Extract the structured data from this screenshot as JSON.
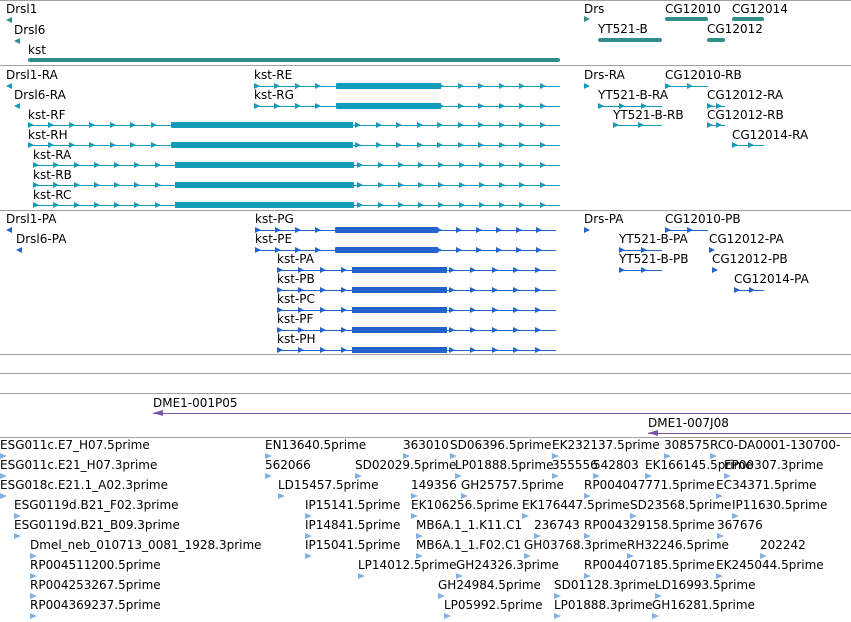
{
  "colors": {
    "gene": "#318c8c",
    "transcript_ra": "#129bb8",
    "protein_pa": "#2563cc",
    "clone": "#7b55a3",
    "est": "#7fb2e0",
    "separator": "#a0a0a0"
  },
  "tracks": {
    "genes": [
      {
        "label": "Drsl1",
        "strand": "-"
      },
      {
        "label": "Drsl6",
        "strand": "-"
      },
      {
        "label": "kst",
        "strand": "+"
      },
      {
        "label": "Drs",
        "strand": "+"
      },
      {
        "label": "YT521-B",
        "strand": "+"
      },
      {
        "label": "CG12010",
        "strand": "+"
      },
      {
        "label": "CG12012",
        "strand": "+"
      },
      {
        "label": "CG12014",
        "strand": "+"
      }
    ],
    "transcripts": [
      {
        "label": "Drsl1-RA"
      },
      {
        "label": "Drsl6-RA"
      },
      {
        "label": "kst-RF"
      },
      {
        "label": "kst-RH"
      },
      {
        "label": "kst-RA"
      },
      {
        "label": "kst-RB"
      },
      {
        "label": "kst-RC"
      },
      {
        "label": "kst-RE"
      },
      {
        "label": "kst-RG"
      },
      {
        "label": "Drs-RA"
      },
      {
        "label": "YT521-B-RA"
      },
      {
        "label": "YT521-B-RB"
      },
      {
        "label": "CG12010-RB"
      },
      {
        "label": "CG12012-RA"
      },
      {
        "label": "CG12012-RB"
      },
      {
        "label": "CG12014-RA"
      }
    ],
    "proteins": [
      {
        "label": "Drsl1-PA"
      },
      {
        "label": "Drsl6-PA"
      },
      {
        "label": "kst-PG"
      },
      {
        "label": "kst-PE"
      },
      {
        "label": "kst-PA"
      },
      {
        "label": "kst-PB"
      },
      {
        "label": "kst-PC"
      },
      {
        "label": "kst-PF"
      },
      {
        "label": "kst-PH"
      },
      {
        "label": "Drs-PA"
      },
      {
        "label": "YT521-B-PA"
      },
      {
        "label": "YT521-B-PB"
      },
      {
        "label": "CG12010-PB"
      },
      {
        "label": "CG12012-PA"
      },
      {
        "label": "CG12012-PB"
      },
      {
        "label": "CG12014-PA"
      }
    ],
    "clones": [
      {
        "label": "DME1-001P05"
      },
      {
        "label": "DME1-007J08"
      }
    ],
    "ests": [
      "ESG011c.E7_H07.5prime",
      "ESG011c.E21_H07.3prime",
      "ESG018c.E21.1_A02.3prime",
      "ESG0119d.B21_F02.3prime",
      "ESG0119d.B21_B09.3prime",
      "Dmel_neb_010713_0081_1928.3prime",
      "RP004511200.5prime",
      "RP004253267.5prime",
      "RP004369237.5prime",
      "EN13640.5prime",
      "562066",
      "LD15457.5prime",
      "IP15141.5prime",
      "IP14841.5prime",
      "IP15041.5prime",
      "363010",
      "SD06396.5prime",
      "SD02029.5prime",
      "LP01888.5prime",
      "149356",
      "GH25757.5prime",
      "EK106256.5prime",
      "MB6A.1_1.K11.C1",
      "MB6A.1_1.F02.C1",
      "LP14012.5prime",
      "GH24326.3prime",
      "GH24984.5prime",
      "LP05992.5prime",
      "EK232137.5prime",
      "355556",
      "542803",
      "EK176447.5prime",
      "236743",
      "GH03768.3prime",
      "SD01128.3prime",
      "LP01888.3prime",
      "308575",
      "RC0-DA0001-130700-",
      "EK166145.5prime",
      "EP00307.3prime",
      "RP004047771.5prime",
      "EC34371.5prime",
      "SD23568.5prime",
      "IP11630.5prime",
      "RP004329158.5prime",
      "367676",
      "RH32246.5prime",
      "202242",
      "RP004407185.5prime",
      "EK245044.5prime",
      "LD16993.5prime",
      "GH16281.5prime"
    ]
  }
}
